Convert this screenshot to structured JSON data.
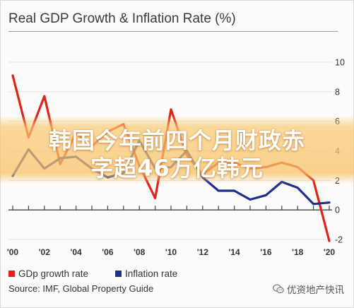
{
  "chart_data": {
    "type": "line",
    "title": "Real GDP Growth & Inflation Rate (%)",
    "x": [
      2000,
      2001,
      2002,
      2003,
      2004,
      2005,
      2006,
      2007,
      2008,
      2009,
      2010,
      2011,
      2012,
      2013,
      2014,
      2015,
      2016,
      2017,
      2018,
      2019,
      2020
    ],
    "xlim": [
      2000,
      2020
    ],
    "x_ticks": [
      2000,
      2002,
      2004,
      2006,
      2008,
      2010,
      2012,
      2014,
      2016,
      2018,
      2020
    ],
    "x_tick_labels": [
      "'00",
      "'02",
      "'04",
      "'06",
      "'08",
      "'10",
      "'12",
      "'14",
      "'16",
      "'18",
      "'20"
    ],
    "ylim": [
      -2,
      10
    ],
    "y_ticks": [
      10,
      8,
      6,
      4,
      2,
      0,
      -2
    ],
    "y_axis_side": "right",
    "grid": true,
    "legend_position": "bottom-left",
    "series": [
      {
        "name": "GDp growth rate",
        "color": "#e2231a",
        "values": [
          9.1,
          4.9,
          7.7,
          3.1,
          5.2,
          4.3,
          5.3,
          5.8,
          3.0,
          0.8,
          6.8,
          3.7,
          2.4,
          3.2,
          3.2,
          2.8,
          2.9,
          3.2,
          2.9,
          2.0,
          -2.1
        ]
      },
      {
        "name": "Inflation rate",
        "color": "#1f2f8c",
        "values": [
          2.3,
          4.1,
          2.8,
          3.5,
          3.6,
          2.8,
          2.2,
          2.5,
          4.7,
          2.8,
          2.9,
          4.0,
          2.2,
          1.3,
          1.3,
          0.7,
          1.0,
          1.9,
          1.5,
          0.4,
          0.5
        ]
      }
    ]
  },
  "overlay": {
    "headline_lines": [
      "韩国今年前四个月财政赤",
      "字超46万亿韩元"
    ],
    "banner_color": "#f8c266",
    "text_color": "#ffffff"
  },
  "footer": {
    "source": "Source: IMF, Global Property Guide",
    "watermark_icon": "wechat-icon",
    "watermark_text": "优资地产快讯"
  }
}
